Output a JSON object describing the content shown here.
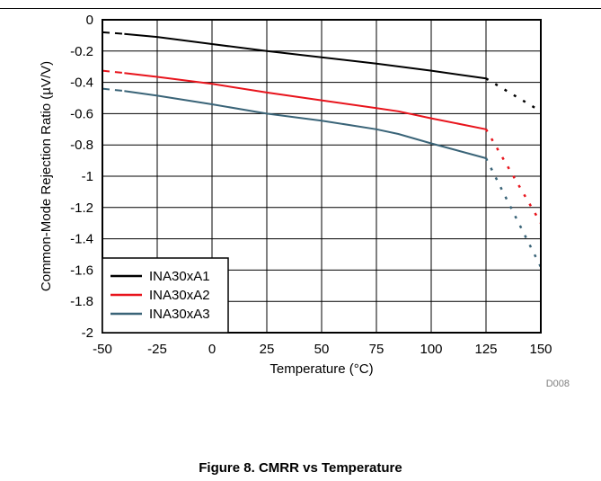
{
  "figure_caption": "Figure 8. CMRR vs Temperature",
  "figure_code": "D008",
  "colors": {
    "INA30xA1": "#000000",
    "INA30xA2": "#e8141c",
    "INA30xA3": "#3a6478",
    "grid": "#000000"
  },
  "chart_data": {
    "type": "line",
    "title": "",
    "xlabel": "Temperature (°C)",
    "ylabel": "Common-Mode Rejection Ratio (µV/V)",
    "xlim": [
      -50,
      150
    ],
    "ylim": [
      -2,
      0
    ],
    "xticks": [
      -50,
      -25,
      0,
      25,
      50,
      75,
      100,
      125,
      150
    ],
    "yticks": [
      0,
      -0.2,
      -0.4,
      -0.6,
      -0.8,
      -1,
      -1.2,
      -1.4,
      -1.6,
      -1.8,
      -2
    ],
    "xtick_labels": [
      "-50",
      "-25",
      "0",
      "25",
      "50",
      "75",
      "100",
      "125",
      "150"
    ],
    "ytick_labels": [
      "0",
      "-0.2",
      "-0.4",
      "-0.6",
      "-0.8",
      "-1",
      "-1.2",
      "-1.4",
      "-1.6",
      "-1.8",
      "-2"
    ],
    "grid": true,
    "legend_position": "bottom-left",
    "series": [
      {
        "name": "INA30xA1",
        "solid": [
          [
            -40,
            -0.09
          ],
          [
            -25,
            -0.11
          ],
          [
            0,
            -0.155
          ],
          [
            25,
            -0.2
          ],
          [
            50,
            -0.24
          ],
          [
            75,
            -0.28
          ],
          [
            100,
            -0.325
          ],
          [
            125,
            -0.375
          ]
        ],
        "dashed": [
          [
            -50,
            -0.08
          ],
          [
            -40,
            -0.09
          ]
        ],
        "dotted": [
          [
            125,
            -0.375
          ],
          [
            150,
            -0.585
          ]
        ]
      },
      {
        "name": "INA30xA2",
        "solid": [
          [
            -40,
            -0.34
          ],
          [
            -25,
            -0.365
          ],
          [
            0,
            -0.41
          ],
          [
            25,
            -0.465
          ],
          [
            50,
            -0.515
          ],
          [
            75,
            -0.565
          ],
          [
            85,
            -0.585
          ],
          [
            100,
            -0.63
          ],
          [
            125,
            -0.7
          ]
        ],
        "dashed": [
          [
            -50,
            -0.325
          ],
          [
            -40,
            -0.34
          ]
        ],
        "dotted": [
          [
            125,
            -0.7
          ],
          [
            150,
            -1.3
          ]
        ]
      },
      {
        "name": "INA30xA3",
        "solid": [
          [
            -40,
            -0.455
          ],
          [
            -25,
            -0.485
          ],
          [
            0,
            -0.54
          ],
          [
            25,
            -0.6
          ],
          [
            50,
            -0.645
          ],
          [
            75,
            -0.7
          ],
          [
            85,
            -0.73
          ],
          [
            100,
            -0.79
          ],
          [
            125,
            -0.885
          ]
        ],
        "dashed": [
          [
            -50,
            -0.44
          ],
          [
            -40,
            -0.455
          ]
        ],
        "dotted": [
          [
            125,
            -0.885
          ],
          [
            150,
            -1.58
          ]
        ]
      }
    ]
  }
}
